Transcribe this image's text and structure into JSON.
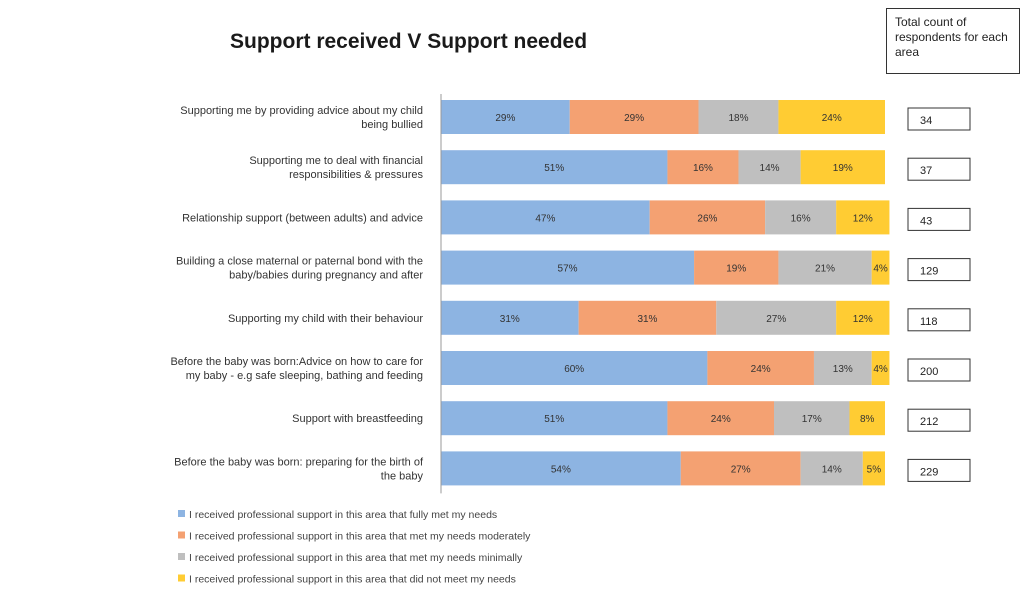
{
  "chart_data": {
    "type": "bar",
    "orientation": "horizontal",
    "stacked": true,
    "title": "Support received V Support needed",
    "categories": [
      "Supporting me by providing advice about my child being bullied",
      "Supporting me to deal with financial responsibilities & pressures",
      "Relationship support (between adults) and advice",
      "Building a close maternal or paternal bond with the baby/babies during pregnancy and after",
      "Supporting my child with their behaviour",
      "Before the baby was born:Advice on how to care for my baby - e.g safe sleeping, bathing and feeding",
      "Support with breastfeeding",
      "Before the baby was born: preparing for the birth of the baby"
    ],
    "series": [
      {
        "name": "I received professional support in this area that fully met my needs",
        "color": "#8db4e2",
        "values": [
          29,
          51,
          47,
          57,
          31,
          60,
          51,
          54
        ]
      },
      {
        "name": "I received professional support in this area that met my needs moderately",
        "color": "#f4a172",
        "values": [
          29,
          16,
          26,
          19,
          31,
          24,
          24,
          27
        ]
      },
      {
        "name": "I received professional support in this area that met my needs minimally",
        "color": "#bfbfbf",
        "values": [
          18,
          14,
          16,
          21,
          27,
          13,
          17,
          14
        ]
      },
      {
        "name": "I received professional support in this area that did not meet my needs",
        "color": "#ffcc33",
        "values": [
          24,
          19,
          12,
          4,
          12,
          4,
          8,
          5
        ]
      }
    ],
    "xlim": [
      0,
      100
    ],
    "legend_position": "bottom",
    "grid": false,
    "total_counts_header": "Total count of respondents for each area",
    "total_counts": [
      34,
      37,
      43,
      129,
      118,
      200,
      212,
      229
    ]
  }
}
